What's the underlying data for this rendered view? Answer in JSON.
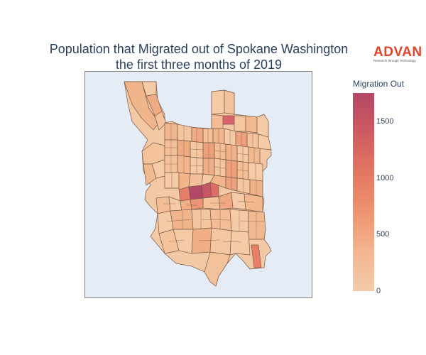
{
  "title": {
    "line1": "Population that Migrated out of Spokane Washington",
    "line2": "the first three months of 2019"
  },
  "logo": {
    "word": "ADVAN",
    "tagline": "Research through Technology",
    "color": "#e0452a"
  },
  "map": {
    "region": "Spokane, Washington",
    "background_color": "#e5ecf6",
    "tract_border_color": "#7a5a46"
  },
  "colorbar": {
    "title": "Migration Out",
    "min": 0,
    "max": 1750,
    "ticks": [
      {
        "value": 1500,
        "label": "1500"
      },
      {
        "value": 1000,
        "label": "1000"
      },
      {
        "value": 500,
        "label": "500"
      },
      {
        "value": 0,
        "label": "0"
      }
    ],
    "colorscale": [
      "#f3cbaa",
      "#f4b590",
      "#ee936f",
      "#e27762",
      "#cf5b61",
      "#b34766"
    ]
  }
}
